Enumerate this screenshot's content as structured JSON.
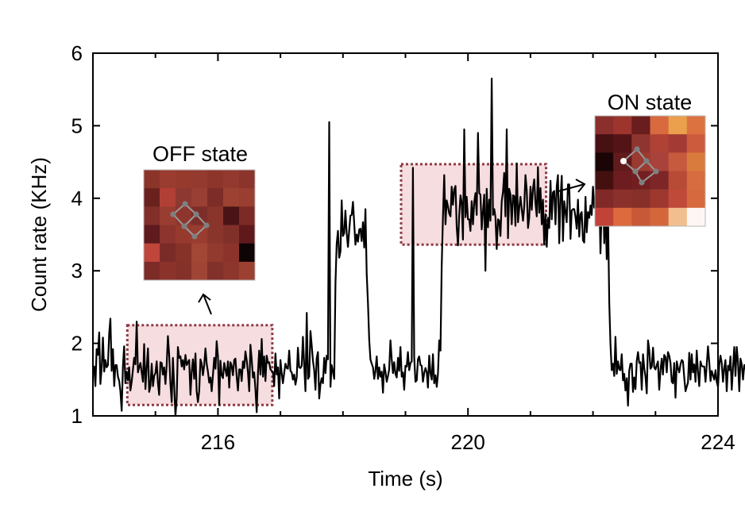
{
  "chart_data": {
    "type": "line",
    "xlabel": "Time (s)",
    "ylabel": "Count rate (KHz)",
    "xlim": [
      214.0,
      224.0
    ],
    "ylim": [
      1,
      6
    ],
    "xticks": [
      216,
      220,
      224
    ],
    "yticks": [
      1,
      2,
      3,
      4,
      5,
      6
    ],
    "grid": false,
    "colors": {
      "line": "#000000",
      "box_fill": "#f6dde0",
      "box_border": "#8e3a44"
    },
    "series": [
      {
        "x_start": 214.0,
        "x_step": 0.02,
        "values": [
          1.64,
          1.68,
          1.41,
          1.92,
          1.84,
          2.15,
          1.44,
          1.66,
          2.08,
          1.61,
          1.77,
          1.67,
          1.7,
          2.14,
          2.34,
          1.62,
          1.92,
          1.41,
          1.7,
          1.7,
          1.54,
          1.48,
          1.34,
          1.55,
          1.69,
          1.96,
          1.45,
          1.61,
          1.49,
          1.67,
          1.35,
          1.47,
          1.64,
          1.8,
          1.71,
          2.3,
          1.6,
          1.67,
          1.73,
          1.6,
          1.47,
          1.99,
          1.37,
          1.67,
          1.93,
          1.33,
          1.41,
          1.72,
          1.41,
          1.55,
          1.59,
          1.75,
          1.46,
          1.29,
          1.74,
          1.73,
          1.57,
          1.67,
          1.44,
          1.71,
          2.1,
          1.84,
          1.44,
          1.19,
          1.8,
          1.41,
          2.07,
          1.25,
          1.95,
          1.8,
          1.82,
          1.68,
          1.77,
          1.64,
          1.84,
          1.7,
          1.74,
          1.77,
          1.29,
          1.6,
          1.78,
          1.51,
          1.86,
          1.34,
          1.19,
          1.34,
          1.78,
          1.72,
          1.56,
          1.7,
          1.93,
          1.72,
          1.61,
          1.46,
          1.53,
          1.34,
          1.56,
          1.8,
          1.65,
          2.03,
          1.82,
          1.15,
          1.76,
          1.56,
          1.52,
          1.73,
          1.64,
          1.55,
          1.75,
          1.39,
          1.74,
          1.69,
          1.56,
          1.77,
          1.79,
          1.54,
          1.35,
          1.64,
          1.64,
          1.48,
          1.75,
          1.66,
          1.89,
          1.77,
          1.6,
          1.34,
          1.98,
          1.78,
          1.53,
          1.6,
          1.37,
          1.89,
          1.59,
          1.9,
          1.57,
          2.06,
          1.54,
          1.82,
          1.48,
          1.83,
          1.73,
          1.74,
          1.64,
          1.62,
          1.6,
          1.41,
          1.86,
          1.57,
          1.67,
          1.24,
          1.77,
          1.59,
          1.45,
          1.59,
          1.72,
          1.66,
          1.65,
          1.9,
          1.62,
          1.6,
          1.5,
          1.57,
          1.43,
          1.53,
          1.94,
          1.67,
          1.66,
          1.69,
          2.09,
          1.7,
          1.34,
          2.42,
          1.51,
          1.54,
          2.17,
          1.98,
          1.76,
          1.63,
          1.36,
          1.79,
          1.88,
          1.24,
          1.44,
          1.52,
          1.45,
          1.8,
          1.59,
          1.83,
          1.78,
          1.66,
          1.4,
          1.7,
          1.61,
          1.51,
          2.84,
          3.37,
          3.55,
          3.18,
          3.27,
          3.97,
          3.48,
          3.52,
          3.83,
          3.52,
          3.33,
          3.56,
          3.76,
          3.77,
          3.95,
          3.65,
          3.36,
          3.5,
          3.4,
          3.57,
          3.58,
          3.41,
          3.67,
          3.32,
          3.85,
          2.96,
          2.55,
          2.04,
          1.78,
          1.72,
          1.67,
          1.51,
          1.62,
          1.82,
          1.51,
          1.67,
          1.54,
          1.61,
          1.32,
          1.71,
          1.61,
          1.47,
          1.55,
          1.64,
          2.04,
          1.78,
          1.59,
          1.74,
          1.58,
          1.53,
          1.8,
          1.62,
          1.95,
          1.54,
          1.6,
          1.36,
          1.69,
          1.68,
          1.88,
          1.63,
          1.73,
          1.75,
          1.6,
          1.81,
          1.47,
          1.49,
          1.78,
          1.82,
          1.7,
          1.69,
          1.47,
          1.59,
          1.66,
          1.6,
          1.39,
          1.83,
          1.59,
          1.5,
          1.85,
          1.45,
          1.56,
          1.4,
          1.58,
          2.04,
          1.9,
          3.05,
          3.74,
          4.32,
          3.64,
          3.97,
          3.89,
          3.79,
          3.75,
          4.16,
          3.91,
          4.12,
          4.17,
          3.61,
          3.35,
          3.77,
          4.04,
          3.94,
          3.43,
          3.67,
          3.74,
          4.02,
          3.71,
          3.71,
          3.55,
          3.96,
          3.64,
          3.95,
          4.07,
          3.77,
          3.64,
          4.07,
          4.05,
          3.57,
          3.82,
          4.05,
          4.24,
          4.13,
          3.6,
          3.98,
          3.69,
          4.31,
          3.77,
          3.85,
          3.74,
          3.3,
          3.71,
          3.69,
          3.48,
          3.96,
          4.09,
          4.35,
          3.75,
          3.57,
          3.45,
          4.13,
          4.05,
          3.64,
          4.04,
          4.03,
          3.62,
          4.48,
          3.67,
          3.86,
          4.02,
          3.85,
          3.69,
          3.88,
          4.32,
          4.11,
          3.59,
          3.73,
          4.16,
          3.84,
          4.13,
          4.26,
          3.93,
          3.75,
          4.43,
          3.8,
          4.14,
          3.64,
          3.98,
          3.36,
          3.78,
          3.33,
          3.73,
          3.59,
          4.24,
          3.71,
          4.08,
          4.1,
          3.64,
          4.17,
          4.32,
          3.38,
          3.99,
          4.31,
          3.41,
          3.96,
          3.81,
          3.67,
          4.19,
          4.19,
          3.44,
          3.83,
          3.85,
          3.85,
          3.74,
          3.58,
          3.98,
          3.47,
          3.78,
          3.81,
          3.42,
          3.39,
          4.02,
          3.53,
          3.81,
          3.73,
          3.9,
          3.77,
          4.16,
          3.87,
          3.91,
          3.63,
          3.81,
          4.14,
          3.24,
          3.89,
          4.13,
          3.38,
          3.92,
          3.16,
          3.79,
          2.56,
          1.99,
          1.63,
          1.72,
          1.55,
          2.09,
          1.58,
          1.75,
          1.64,
          1.63,
          1.85,
          1.49,
          1.58,
          1.35,
          1.52,
          1.57,
          1.62,
          1.72,
          1.72,
          1.33,
          1.53,
          1.37,
          1.76,
          1.88,
          1.73,
          1.74,
          1.36,
          1.85,
          1.66,
          1.54,
          1.31,
          2.04,
          1.91,
          1.65,
          1.68,
          1.94,
          1.67,
          1.64,
          1.7,
          1.75,
          1.36,
          1.63,
          1.79,
          1.57,
          1.84,
          1.81,
          1.6,
          1.88,
          1.83,
          1.73,
          1.47,
          1.45,
          1.73,
          1.25,
          1.75,
          1.66,
          1.6,
          1.71,
          1.77,
          1.75,
          1.53,
          1.34,
          1.4,
          1.46,
          1.87,
          1.5,
          1.85,
          1.6,
          1.71,
          1.47,
          1.9,
          1.61,
          1.41,
          1.75,
          1.69,
          1.68,
          1.68,
          1.47,
          1.7,
          1.96,
          1.74,
          1.48,
          1.62,
          1.56,
          1.5,
          1.63,
          1.47,
          1.4,
          1.7,
          1.83,
          1.73,
          1.47,
          1.66,
          1.77,
          1.34,
          1.69,
          1.63,
          1.82,
          1.36,
          1.67,
          1.95,
          1.55,
          1.95,
          1.74,
          1.34,
          1.79,
          1.71,
          1.5,
          1.7,
          1.7,
          1.45,
          1.73,
          1.61,
          1.82,
          1.77,
          1.62,
          1.52,
          1.53,
          1.69,
          1.87,
          1.6,
          1.75,
          1.62,
          1.74,
          1.48,
          1.55,
          1.33,
          1.73,
          1.57,
          1.71,
          1.68,
          1.69,
          1.6,
          1.52,
          1.76,
          1.95,
          1.62,
          1.95,
          1.74,
          1.97,
          1.79,
          1.82,
          1.79,
          1.37,
          1.5
        ]
      }
    ],
    "spikes": [
      {
        "x": 217.79,
        "y": 5.05
      },
      {
        "x": 219.13,
        "y": 4.42
      },
      {
        "x": 219.93,
        "y": 4.95
      },
      {
        "x": 220.17,
        "y": 4.9
      },
      {
        "x": 220.37,
        "y": 5.65
      },
      {
        "x": 220.63,
        "y": 4.95
      }
    ],
    "dips": [
      {
        "x": 215.31,
        "y": 1.0
      },
      {
        "x": 216.63,
        "y": 1.05
      },
      {
        "x": 214.47,
        "y": 1.07
      },
      {
        "x": 220.29,
        "y": 3.0
      },
      {
        "x": 222.57,
        "y": 1.14
      }
    ],
    "off_box": {
      "x": [
        214.55,
        216.87
      ],
      "y": [
        1.15,
        2.25
      ]
    },
    "on_box": {
      "x": [
        218.93,
        221.25
      ],
      "y": [
        3.36,
        4.47
      ]
    },
    "annotations": {
      "off_label": "OFF state",
      "on_label": "ON state",
      "off_grid": [
        [
          "#8b342a",
          "#9a3c2f",
          "#973a2e",
          "#953a2f",
          "#8e352b",
          "#93392f",
          "#8a342c"
        ],
        [
          "#6a211e",
          "#b23f36",
          "#8d3830",
          "#9a3f33",
          "#7e2c27",
          "#9d4232",
          "#993e31"
        ],
        [
          "#822f2a",
          "#9a3d31",
          "#8e352d",
          "#7d2e2a",
          "#8a352c",
          "#4a1417",
          "#7c2a26"
        ],
        [
          "#5e1a1c",
          "#8c342d",
          "#973a2e",
          "#9a3c30",
          "#8a352c",
          "#812f29",
          "#60191a"
        ],
        [
          "#c0463b",
          "#7b2b27",
          "#873228",
          "#a24635",
          "#933a2f",
          "#8c342b",
          "#0e0405"
        ],
        [
          "#7c2b27",
          "#8b332b",
          "#84312a",
          "#a04536",
          "#82302a",
          "#8c362c",
          "#9c4032"
        ]
      ],
      "on_grid": [
        [
          "#8a2f2c",
          "#9d342d",
          "#6a1d1d",
          "#d9693f",
          "#eaa04c",
          "#dc7240"
        ],
        [
          "#471012",
          "#541417",
          "#8f3530",
          "#b04235",
          "#a33b34",
          "#cc5b3e"
        ],
        [
          "#1a0406",
          "#621b1c",
          "#9b3a31",
          "#a8423b",
          "#c55a3e",
          "#d97b3c"
        ],
        [
          "#44100f",
          "#6d1d1f",
          "#731f22",
          "#7e2627",
          "#b74b36",
          "#d66c3f"
        ],
        [
          "#7f2a28",
          "#8b302a",
          "#863029",
          "#9d382f",
          "#c04a3a",
          "#d66a3e"
        ],
        [
          "#c14237",
          "#dc6a3d",
          "#c75937",
          "#d4663c",
          "#f1bf8f",
          "#fdf6f4"
        ]
      ]
    }
  }
}
